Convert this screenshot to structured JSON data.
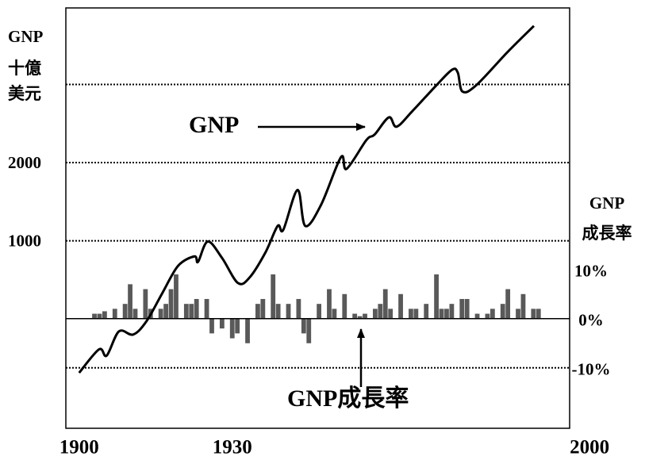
{
  "chart_data": {
    "type": "line",
    "y_label": [
      "GNP",
      "十億",
      "美元"
    ],
    "y2_label": [
      "GNP",
      "成長率"
    ],
    "xlim": [
      1897.4,
      1996.1
    ],
    "xticks": [
      1900,
      1930,
      2000
    ],
    "ylim": [
      -1400,
      3980
    ],
    "yticks": [
      1000,
      2000
    ],
    "ygrid": [
      1000,
      2000,
      3000
    ],
    "y2lim": [
      -22.3,
      63.2
    ],
    "y2ticks": [
      {
        "value": 10,
        "label": "10%"
      },
      {
        "value": 0,
        "label": "0%"
      },
      {
        "value": -10,
        "label": "-10%"
      }
    ],
    "y2grid": [
      -10
    ],
    "series": [
      {
        "name": "GNP",
        "color": "#000000",
        "x": [
          1900,
          1903.9,
          1905.4,
          1907.8,
          1910.6,
          1913.2,
          1916.3,
          1919.4,
          1922.6,
          1923.3,
          1925.2,
          1928,
          1931.1,
          1933.4,
          1936.5,
          1938.9,
          1940,
          1942.8,
          1944.3,
          1947.4,
          1951.3,
          1952.4,
          1956.3,
          1957.9,
          1960.7,
          1962.2,
          1965.3,
          1970,
          1973.1,
          1974.2,
          1975.1,
          1977.8,
          1984,
          1989.1
        ],
        "values": [
          -690,
          -390,
          -470,
          -160,
          -200,
          -30,
          330,
          680,
          800,
          730,
          990,
          780,
          460,
          530,
          850,
          1190,
          1140,
          1650,
          1190,
          1460,
          2070,
          1920,
          2290,
          2360,
          2580,
          2460,
          2660,
          2990,
          3190,
          3150,
          2910,
          2990,
          3420,
          3750
        ]
      },
      {
        "name": "GNP成長率",
        "type": "bar",
        "axis": "y2",
        "color": "#595959",
        "x": [
          1903,
          1904,
          1905,
          1907,
          1909,
          1910,
          1911,
          1913,
          1914,
          1916,
          1917,
          1918,
          1919,
          1921,
          1922,
          1923,
          1925,
          1926,
          1928,
          1930,
          1931,
          1933,
          1935,
          1936,
          1938,
          1939,
          1941,
          1943,
          1944,
          1945,
          1947,
          1949,
          1950,
          1952,
          1954,
          1955,
          1956,
          1958,
          1959,
          1960,
          1961,
          1963,
          1965,
          1966,
          1968,
          1970,
          1971,
          1972,
          1973,
          1975,
          1976,
          1978,
          1980,
          1981,
          1983,
          1984,
          1986,
          1987,
          1989,
          1990
        ],
        "values": [
          1,
          1,
          1.5,
          2,
          3,
          7,
          2,
          6,
          2,
          2,
          3,
          6,
          9,
          3,
          3,
          4,
          4,
          -3,
          -2,
          -4,
          -3,
          -5,
          3,
          4,
          9,
          3,
          3,
          4,
          -3,
          -5,
          3,
          6,
          2,
          5,
          1,
          0.5,
          1,
          2,
          3,
          6,
          2,
          5,
          2,
          2,
          3,
          9,
          2,
          2,
          3,
          4,
          4,
          1,
          1,
          2,
          3,
          6,
          2,
          5,
          2,
          2
        ]
      }
    ]
  }
}
